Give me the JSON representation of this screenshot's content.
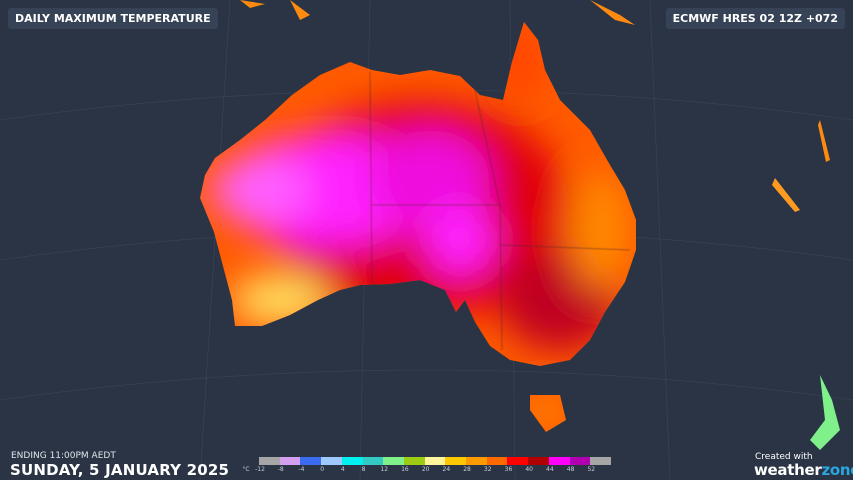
{
  "header": {
    "title": "DAILY MAXIMUM TEMPERATURE",
    "model": "ECMWF HRES 02 12Z +072"
  },
  "footer": {
    "ending": "ENDING 11:00PM AEDT",
    "date": "SUNDAY, 5 JANUARY 2025",
    "credit": "Created with",
    "logo_weather": "weather",
    "logo_zone": "zone"
  },
  "legend": {
    "unit": "°C",
    "labels": [
      "-12",
      "-8",
      "-4",
      "0",
      "4",
      "8",
      "12",
      "16",
      "20",
      "24",
      "28",
      "32",
      "36",
      "40",
      "44",
      "48",
      "52"
    ],
    "colors": [
      "#a6a6a6",
      "#d59ff0",
      "#3b6cf0",
      "#9ec8ff",
      "#00f0f0",
      "#33c9c4",
      "#7ff08a",
      "#9ccc14",
      "#fff59a",
      "#ffc800",
      "#ff9a00",
      "#ff6a00",
      "#ff0000",
      "#b00000",
      "#ff00ff",
      "#b000b0",
      "#a6a6a6"
    ]
  },
  "colors": {
    "background": "#2a3445",
    "accent_logo": "#2aa7e0"
  }
}
